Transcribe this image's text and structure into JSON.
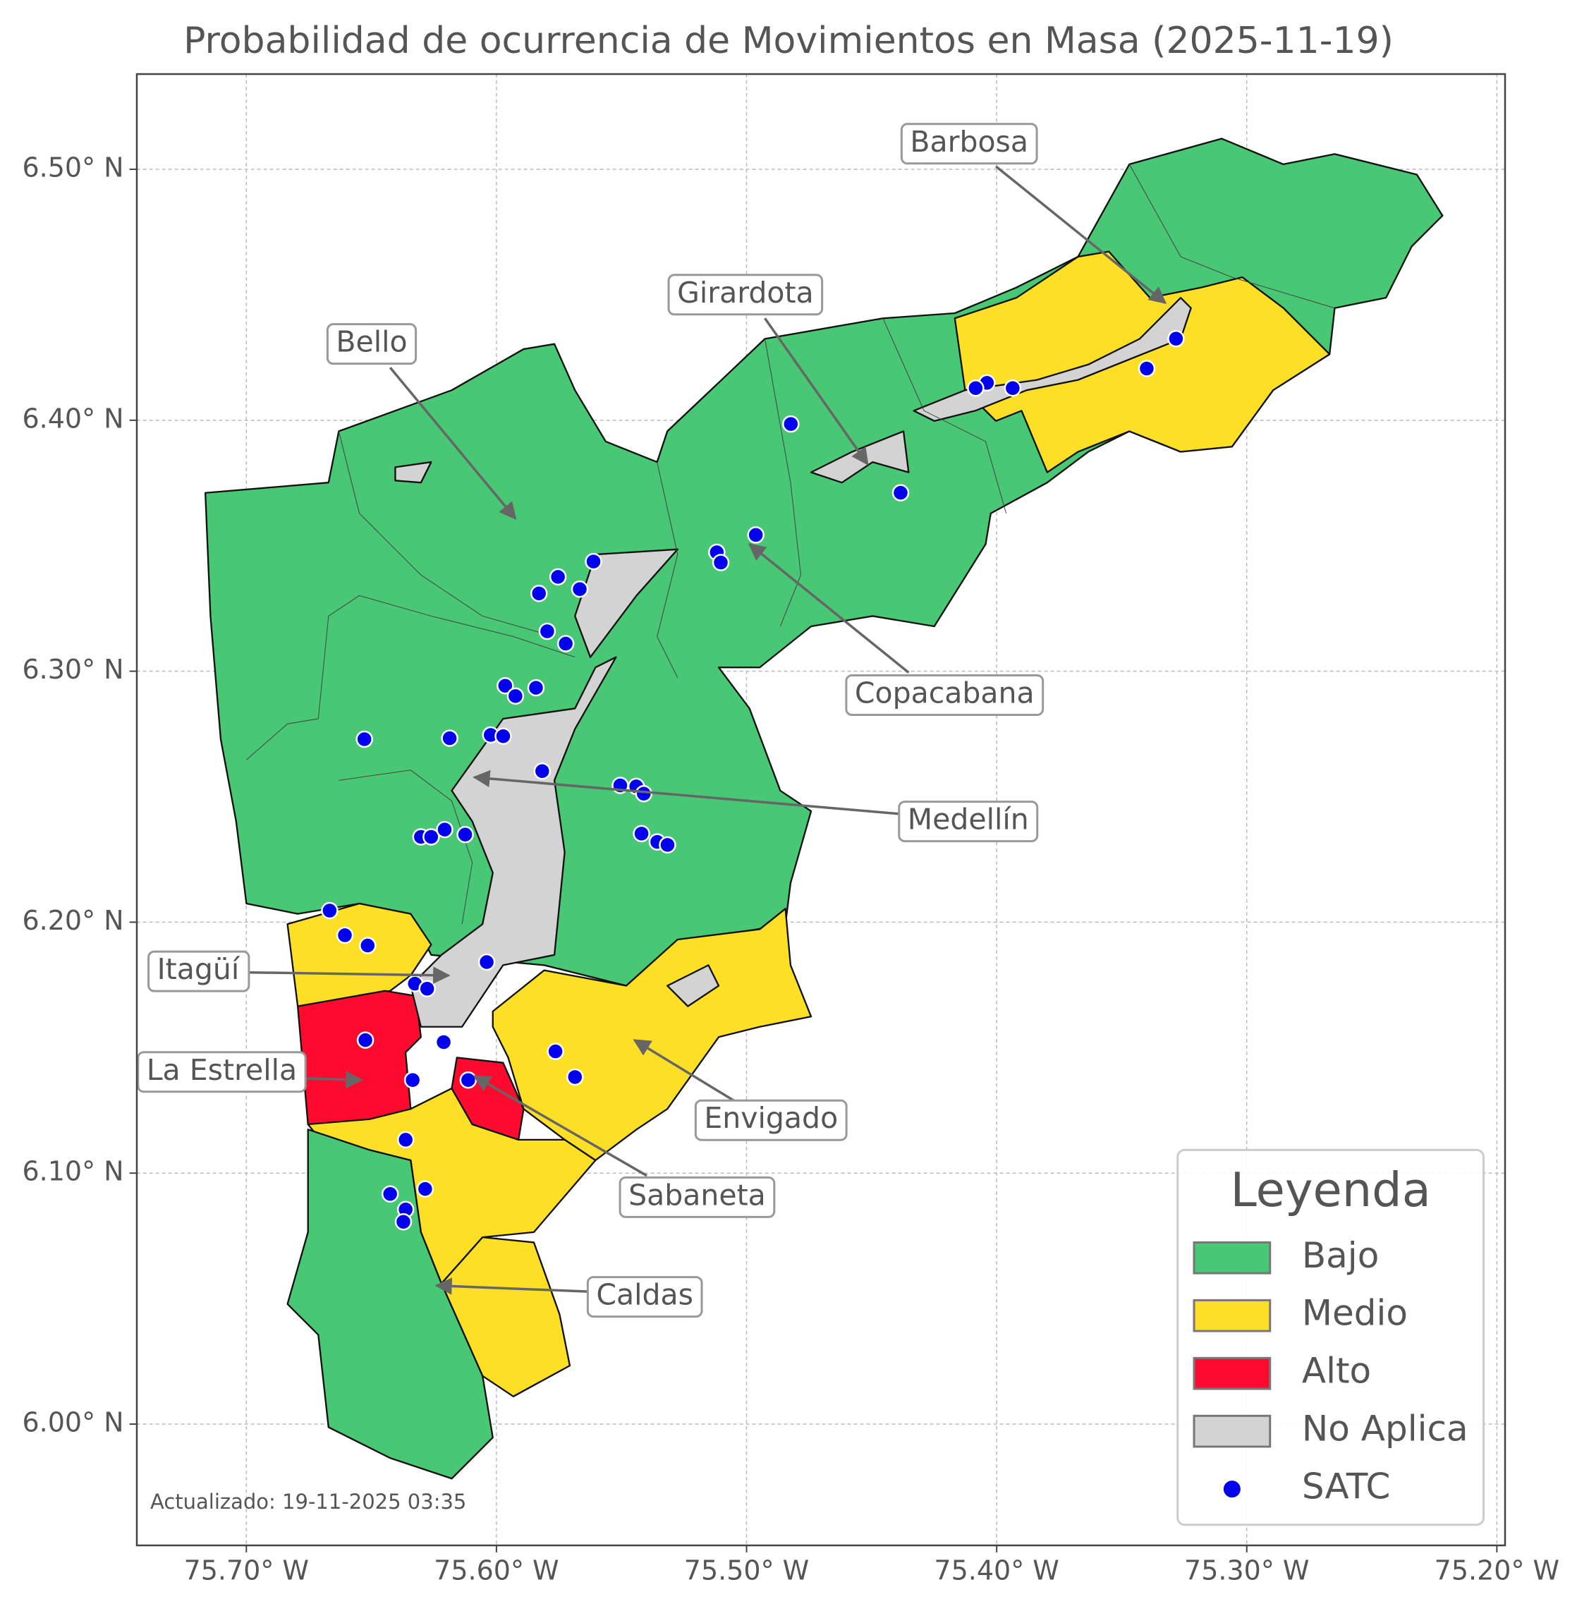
{
  "map": {
    "title": "Probabilidad de ocurrencia de Movimientos en Masa (2025-11-19)",
    "xlim": [
      -75.7439,
      -75.1967
    ],
    "ylim": [
      5.9517,
      6.538
    ],
    "xticks": [
      {
        "value": -75.7,
        "label": "75.70° W"
      },
      {
        "value": -75.6,
        "label": "75.60° W"
      },
      {
        "value": -75.5,
        "label": "75.50° W"
      },
      {
        "value": -75.4,
        "label": "75.40° W"
      },
      {
        "value": -75.3,
        "label": "75.30° W"
      },
      {
        "value": -75.2,
        "label": "75.20° W"
      }
    ],
    "yticks": [
      {
        "value": 6.0,
        "label": "6.00° N"
      },
      {
        "value": 6.1,
        "label": "6.10° N"
      },
      {
        "value": 6.2,
        "label": "6.20° N"
      },
      {
        "value": 6.3,
        "label": "6.30° N"
      },
      {
        "value": 6.4,
        "label": "6.40° N"
      },
      {
        "value": 6.5,
        "label": "6.50° N"
      }
    ],
    "grid": true,
    "labels": [
      "Barbosa",
      "Girardota",
      "Bello",
      "Copacabana",
      "Medellín",
      "Itagüí",
      "La Estrella",
      "Envigado",
      "Sabaneta",
      "Caldas"
    ],
    "legend": {
      "title": "Leyenda",
      "items": [
        {
          "name": "Bajo",
          "color": "#48c774"
        },
        {
          "name": "Medio",
          "color": "#fde026"
        },
        {
          "name": "Alto",
          "color": "#ff0a2f"
        },
        {
          "name": "No Aplica",
          "color": "#d3d3d3"
        },
        {
          "name": "SATC",
          "color": "#0000ee"
        }
      ]
    },
    "satc": {
      "lon": [
        -75.3283,
        -75.34,
        -75.3936,
        -75.4039,
        -75.4084,
        -75.4823,
        -75.4384,
        -75.4963,
        -75.5119,
        -75.5103,
        -75.5612,
        -75.5754,
        -75.5667,
        -75.583,
        -75.5797,
        -75.5723,
        -75.5965,
        -75.5842,
        -75.5924,
        -75.6528,
        -75.6187,
        -75.6023,
        -75.5973,
        -75.5817,
        -75.5505,
        -75.5441,
        -75.5411,
        -75.542,
        -75.5357,
        -75.5316,
        -75.6302,
        -75.6261,
        -75.6207,
        -75.6125,
        -75.6667,
        -75.6606,
        -75.6515,
        -75.6039,
        -75.6326,
        -75.6277,
        -75.6524,
        -75.6211,
        -75.5764,
        -75.5686,
        -75.6335,
        -75.6113,
        -75.6363,
        -75.6425,
        -75.6285,
        -75.6363,
        -75.6372
      ],
      "lat": [
        6.4325,
        6.4206,
        6.4128,
        6.4149,
        6.4128,
        6.3985,
        6.3711,
        6.3543,
        6.3474,
        6.3433,
        6.3437,
        6.3376,
        6.3327,
        6.331,
        6.3159,
        6.311,
        6.2942,
        6.2934,
        6.2901,
        6.2729,
        6.2733,
        6.2746,
        6.2741,
        6.2602,
        6.2545,
        6.2541,
        6.2512,
        6.2353,
        6.232,
        6.2308,
        6.234,
        6.234,
        6.2369,
        6.2349,
        6.2046,
        6.1948,
        6.1907,
        6.1841,
        6.1755,
        6.1735,
        6.153,
        6.1522,
        6.1485,
        6.1383,
        6.1371,
        6.1371,
        6.1133,
        6.0917,
        6.0937,
        6.0855,
        6.0806
      ]
    },
    "footnote": "Actualizado: 19-11-2025 03:35"
  }
}
